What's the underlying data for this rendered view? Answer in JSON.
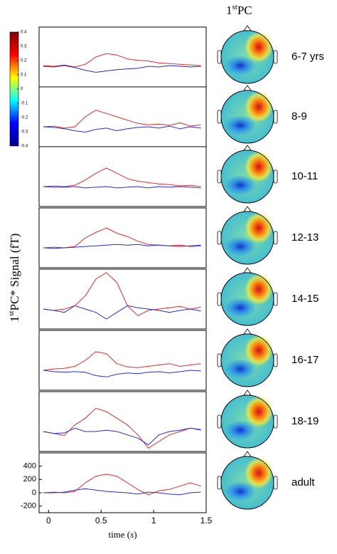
{
  "title": [
    "1",
    "st",
    "PC"
  ],
  "ylabel": [
    "1",
    "st",
    "PC* Signal (fT)"
  ],
  "chart_data": [
    {
      "type": "line",
      "label": "6-7 yrs",
      "xlim": [
        -0.09,
        1.5
      ],
      "ylim": [
        -300,
        600
      ],
      "x": [
        -0.05,
        0.05,
        0.15,
        0.25,
        0.35,
        0.45,
        0.55,
        0.65,
        0.75,
        0.85,
        0.95,
        1.05,
        1.15,
        1.25,
        1.35,
        1.45
      ],
      "series": [
        {
          "color": "#e8282a",
          "values": [
            20,
            10,
            30,
            0,
            40,
            150,
            200,
            180,
            120,
            100,
            90,
            60,
            50,
            40,
            30,
            20
          ]
        },
        {
          "color": "#2a2ae0",
          "values": [
            10,
            0,
            20,
            -10,
            -50,
            -80,
            -60,
            -40,
            -30,
            -20,
            10,
            0,
            20,
            10,
            0,
            10
          ]
        }
      ]
    },
    {
      "type": "line",
      "label": "8-9",
      "xlim": [
        -0.09,
        1.5
      ],
      "ylim": [
        -300,
        600
      ],
      "x": [
        -0.05,
        0.05,
        0.15,
        0.25,
        0.35,
        0.45,
        0.55,
        0.65,
        0.75,
        0.85,
        0.95,
        1.05,
        1.15,
        1.25,
        1.35,
        1.45
      ],
      "series": [
        {
          "color": "#e8282a",
          "values": [
            0,
            10,
            -20,
            0,
            150,
            250,
            200,
            150,
            100,
            50,
            30,
            40,
            20,
            60,
            10,
            30
          ]
        },
        {
          "color": "#2a2ae0",
          "values": [
            0,
            -10,
            -30,
            -60,
            -80,
            -40,
            -20,
            -60,
            -30,
            -10,
            0,
            -20,
            10,
            -30,
            0,
            -20
          ]
        }
      ]
    },
    {
      "type": "line",
      "label": "10-11",
      "xlim": [
        -0.09,
        1.5
      ],
      "ylim": [
        -300,
        600
      ],
      "x": [
        -0.05,
        0.05,
        0.15,
        0.25,
        0.35,
        0.45,
        0.55,
        0.65,
        0.75,
        0.85,
        0.95,
        1.05,
        1.15,
        1.25,
        1.35,
        1.45
      ],
      "series": [
        {
          "color": "#e8282a",
          "values": [
            0,
            10,
            0,
            20,
            100,
            200,
            280,
            200,
            120,
            80,
            60,
            40,
            30,
            10,
            20,
            0
          ]
        },
        {
          "color": "#2a2ae0",
          "values": [
            0,
            -10,
            -10,
            0,
            -20,
            -10,
            0,
            -20,
            -10,
            0,
            -20,
            0,
            -10,
            0,
            -10,
            -20
          ]
        }
      ]
    },
    {
      "type": "line",
      "label": "12-13",
      "xlim": [
        -0.09,
        1.5
      ],
      "ylim": [
        -300,
        600
      ],
      "x": [
        -0.05,
        0.05,
        0.15,
        0.25,
        0.35,
        0.45,
        0.55,
        0.65,
        0.75,
        0.85,
        0.95,
        1.05,
        1.15,
        1.25,
        1.35,
        1.45
      ],
      "series": [
        {
          "color": "#e8282a",
          "values": [
            0,
            10,
            0,
            20,
            150,
            230,
            300,
            220,
            170,
            100,
            50,
            40,
            30,
            40,
            20,
            30
          ]
        },
        {
          "color": "#2a2ae0",
          "values": [
            0,
            -10,
            0,
            10,
            20,
            30,
            40,
            50,
            40,
            50,
            30,
            40,
            30,
            20,
            30,
            40
          ]
        }
      ]
    },
    {
      "type": "line",
      "label": "14-15",
      "xlim": [
        -0.09,
        1.5
      ],
      "ylim": [
        -300,
        600
      ],
      "x": [
        -0.05,
        0.05,
        0.15,
        0.25,
        0.35,
        0.45,
        0.55,
        0.65,
        0.75,
        0.85,
        0.95,
        1.05,
        1.15,
        1.25,
        1.35,
        1.45
      ],
      "series": [
        {
          "color": "#e8282a",
          "values": [
            0,
            -20,
            0,
            50,
            200,
            450,
            550,
            400,
            50,
            -100,
            -20,
            0,
            20,
            40,
            0,
            30
          ]
        },
        {
          "color": "#2a2ae0",
          "values": [
            0,
            -20,
            -50,
            50,
            0,
            -50,
            -150,
            -50,
            50,
            20,
            0,
            -20,
            -50,
            -20,
            0,
            -30
          ]
        }
      ]
    },
    {
      "type": "line",
      "label": "16-17",
      "xlim": [
        -0.09,
        1.5
      ],
      "ylim": [
        -300,
        600
      ],
      "x": [
        -0.05,
        0.05,
        0.15,
        0.25,
        0.35,
        0.45,
        0.55,
        0.65,
        0.75,
        0.85,
        0.95,
        1.05,
        1.15,
        1.25,
        1.35,
        1.45
      ],
      "series": [
        {
          "color": "#e8282a",
          "values": [
            0,
            20,
            30,
            60,
            150,
            280,
            250,
            100,
            50,
            40,
            60,
            80,
            100,
            60,
            80,
            100
          ]
        },
        {
          "color": "#2a2ae0",
          "values": [
            0,
            -20,
            -30,
            -20,
            -30,
            -80,
            -100,
            -60,
            -40,
            -50,
            -30,
            -20,
            -40,
            -20,
            0,
            -10
          ]
        }
      ]
    },
    {
      "type": "line",
      "label": "18-19",
      "xlim": [
        -0.09,
        1.5
      ],
      "ylim": [
        -300,
        600
      ],
      "x": [
        -0.05,
        0.05,
        0.15,
        0.25,
        0.35,
        0.45,
        0.55,
        0.65,
        0.75,
        0.85,
        0.95,
        1.05,
        1.15,
        1.25,
        1.35,
        1.45
      ],
      "series": [
        {
          "color": "#e8282a",
          "values": [
            0,
            -30,
            -60,
            100,
            200,
            350,
            300,
            200,
            100,
            -50,
            -250,
            -150,
            -50,
            0,
            50,
            20
          ]
        },
        {
          "color": "#2a2ae0",
          "values": [
            0,
            -30,
            -20,
            50,
            0,
            0,
            20,
            0,
            -50,
            -100,
            -200,
            -50,
            0,
            20,
            50,
            30
          ]
        }
      ]
    },
    {
      "type": "line",
      "label": "adult",
      "xlim": [
        -0.09,
        1.5
      ],
      "ylim": [
        -300,
        600
      ],
      "x": [
        -0.05,
        0.05,
        0.15,
        0.25,
        0.35,
        0.45,
        0.55,
        0.65,
        0.75,
        0.85,
        0.95,
        1.05,
        1.15,
        1.25,
        1.35,
        1.45
      ],
      "series": [
        {
          "color": "#e8282a",
          "values": [
            0,
            10,
            0,
            20,
            150,
            250,
            280,
            250,
            150,
            50,
            -30,
            30,
            50,
            100,
            150,
            100
          ]
        },
        {
          "color": "#2a2ae0",
          "values": [
            0,
            0,
            10,
            40,
            60,
            40,
            20,
            10,
            0,
            -20,
            10,
            0,
            -20,
            -30,
            0,
            10
          ]
        }
      ],
      "yticks": [
        -200,
        0,
        200,
        400
      ],
      "xticks": [
        0,
        0.5,
        1,
        1.5
      ],
      "xlabel": [
        "time (",
        "s",
        ")"
      ]
    },
    {
      "type": "colorbar",
      "ylim": [
        -0.4,
        0.4
      ],
      "yticks": [
        0.4,
        0.3,
        0.2,
        0.1,
        0,
        -0.1,
        -0.2,
        -0.3,
        -0.4
      ],
      "colors": [
        "#00008f",
        "#0000ff",
        "#00ffff",
        "#ffff00",
        "#ff0000",
        "#800000"
      ]
    }
  ]
}
